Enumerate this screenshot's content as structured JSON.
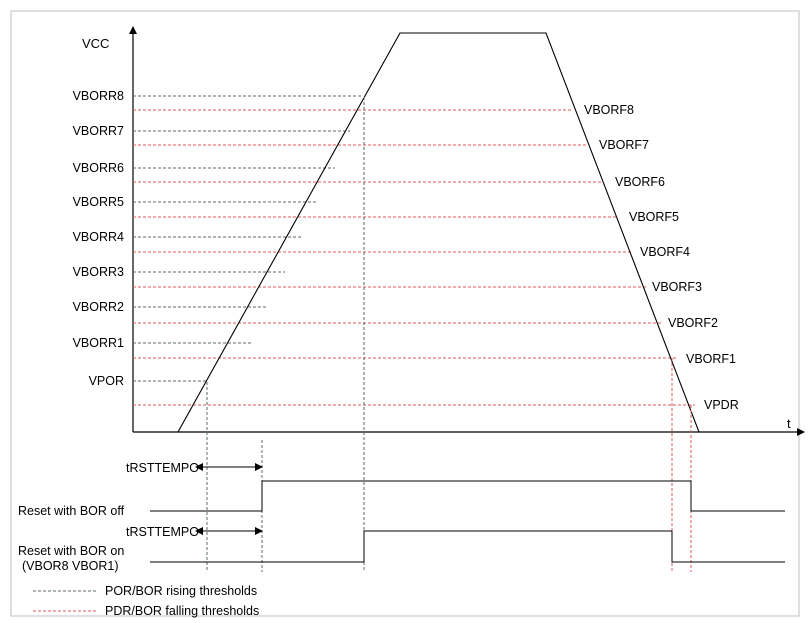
{
  "axes": {
    "y_label": "VCC",
    "x_label": "t"
  },
  "rising_thresholds": [
    "VBORR8",
    "VBORR7",
    "VBORR6",
    "VBORR5",
    "VBORR4",
    "VBORR3",
    "VBORR2",
    "VBORR1",
    "VPOR"
  ],
  "falling_thresholds": [
    "VBORF8",
    "VBORF7",
    "VBORF6",
    "VBORF5",
    "VBORF4",
    "VBORF3",
    "VBORF2",
    "VBORF1",
    "VPDR"
  ],
  "timing": {
    "trst_label_1": "tRSTTEMPO",
    "trst_label_2": "tRSTTEMPO",
    "reset_bor_off": "Reset with BOR off",
    "reset_bor_on": "Reset with BOR on",
    "reset_bor_on_sub": "(VBOR8 VBOR1)"
  },
  "legend": {
    "rising": "POR/BOR rising thresholds",
    "falling": "PDR/BOR falling thresholds"
  },
  "colors": {
    "rising_line": "#5a6a6a",
    "falling_line": "#e05a5a",
    "border": "#bfbfbf",
    "curve": "#000000"
  }
}
